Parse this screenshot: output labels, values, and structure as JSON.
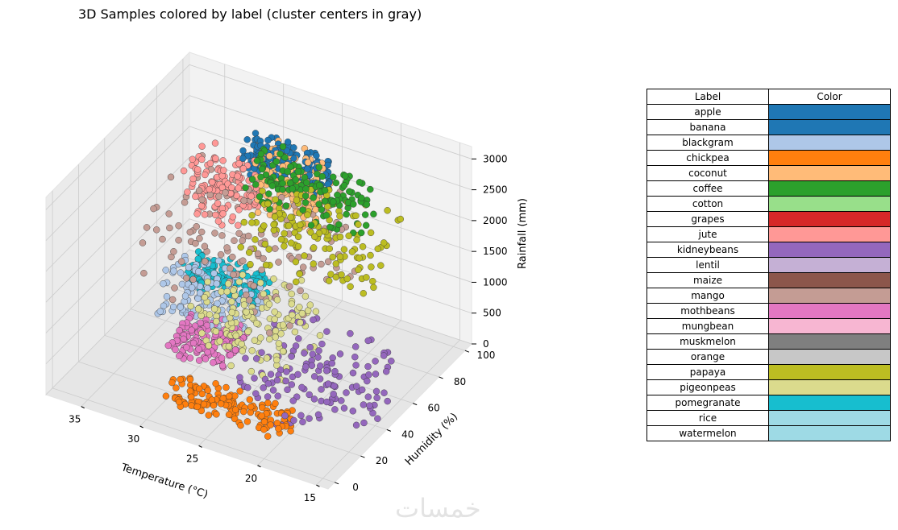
{
  "chart_data": {
    "type": "scatter",
    "title": "3D Samples colored by label (cluster centers in gray)",
    "xlabel": "Temperature (°C)",
    "ylabel": "Humidity (%)",
    "zlabel": "Rainfall (mm)",
    "x_ticks": [
      "15",
      "20",
      "25",
      "30",
      "35"
    ],
    "y_ticks": [
      "0",
      "20",
      "40",
      "60",
      "80",
      "100"
    ],
    "z_ticks": [
      "0",
      "500",
      "1000",
      "1500",
      "2000",
      "2500",
      "3000"
    ],
    "xlim": [
      14,
      38
    ],
    "ylim": [
      -5,
      105
    ],
    "zlim": [
      0,
      3200
    ],
    "grid": true,
    "clusters": [
      {
        "label": "coffee",
        "color": "#2ca02c",
        "x": [
          18,
          28
        ],
        "y": [
          55,
          75
        ],
        "z": [
          2400,
          3150
        ]
      },
      {
        "label": "coconut",
        "color": "#ffbb78",
        "x": [
          25,
          30
        ],
        "y": [
          80,
          98
        ],
        "z": [
          1600,
          2500
        ]
      },
      {
        "label": "apple",
        "color": "#1f77b4",
        "x": [
          25,
          32
        ],
        "y": [
          88,
          100
        ],
        "z": [
          2000,
          2500
        ]
      },
      {
        "label": "jute",
        "color": "#ff9896",
        "x": [
          30,
          35
        ],
        "y": [
          70,
          92
        ],
        "z": [
          1500,
          2300
        ]
      },
      {
        "label": "papaya",
        "color": "#bcbd22",
        "x": [
          16,
          27
        ],
        "y": [
          38,
          72
        ],
        "z": [
          1900,
          2800
        ]
      },
      {
        "label": "mango",
        "color": "#c49c94",
        "x": [
          22,
          36
        ],
        "y": [
          45,
          95
        ],
        "z": [
          700,
          2100
        ]
      },
      {
        "label": "kidneybeans",
        "color": "#9467bd",
        "x": [
          14,
          25
        ],
        "y": [
          18,
          58
        ],
        "z": [
          0,
          1000
        ]
      },
      {
        "label": "chickpea",
        "color": "#ff7f0e",
        "x": [
          20,
          30
        ],
        "y": [
          12,
          25
        ],
        "z": [
          0,
          300
        ]
      },
      {
        "label": "mothbeans",
        "color": "#e377c2",
        "x": [
          28,
          33
        ],
        "y": [
          40,
          64
        ],
        "z": [
          0,
          250
        ]
      },
      {
        "label": "blackgram",
        "color": "#aec7e8",
        "x": [
          29,
          36
        ],
        "y": [
          60,
          85
        ],
        "z": [
          0,
          600
        ]
      },
      {
        "label": "pigeonpeas",
        "color": "#dbdb8d",
        "x": [
          22,
          30
        ],
        "y": [
          30,
          65
        ],
        "z": [
          300,
          1400
        ]
      },
      {
        "label": "pomegranate",
        "color": "#17becf",
        "x": [
          30,
          36
        ],
        "y": [
          80,
          95
        ],
        "z": [
          0,
          400
        ]
      }
    ],
    "legend": [
      {
        "label": "apple",
        "color": "#1f77b4"
      },
      {
        "label": "banana",
        "color": "#1f77b4"
      },
      {
        "label": "blackgram",
        "color": "#aec7e8"
      },
      {
        "label": "chickpea",
        "color": "#ff7f0e"
      },
      {
        "label": "coconut",
        "color": "#ffbb78"
      },
      {
        "label": "coffee",
        "color": "#2ca02c"
      },
      {
        "label": "cotton",
        "color": "#98df8a"
      },
      {
        "label": "grapes",
        "color": "#d62728"
      },
      {
        "label": "jute",
        "color": "#ff9896"
      },
      {
        "label": "kidneybeans",
        "color": "#9467bd"
      },
      {
        "label": "lentil",
        "color": "#c5b0d5"
      },
      {
        "label": "maize",
        "color": "#8c564b"
      },
      {
        "label": "mango",
        "color": "#c49c94"
      },
      {
        "label": "mothbeans",
        "color": "#e377c2"
      },
      {
        "label": "mungbean",
        "color": "#f7b6d2"
      },
      {
        "label": "muskmelon",
        "color": "#7f7f7f"
      },
      {
        "label": "orange",
        "color": "#c7c7c7"
      },
      {
        "label": "papaya",
        "color": "#bcbd22"
      },
      {
        "label": "pigeonpeas",
        "color": "#dbdb8d"
      },
      {
        "label": "pomegranate",
        "color": "#17becf"
      },
      {
        "label": "rice",
        "color": "#9edae5"
      },
      {
        "label": "watermelon",
        "color": "#9edae5"
      }
    ],
    "legend_headers": {
      "label": "Label",
      "color": "Color"
    }
  },
  "watermark": "خمسات"
}
